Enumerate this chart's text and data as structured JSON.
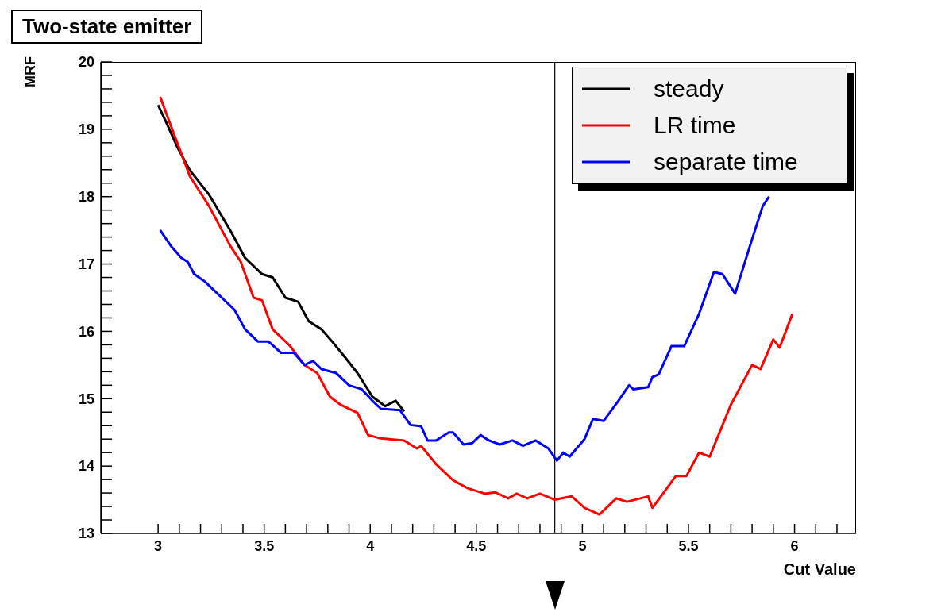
{
  "chart_data": {
    "type": "line",
    "title": "Two-state emitter",
    "xlabel": "Cut Value",
    "ylabel": "MRF",
    "xlim": [
      2.73,
      6.29
    ],
    "ylim": [
      13,
      20
    ],
    "xticks": [
      3,
      {
        "value": 3.1,
        "label": null
      },
      {
        "value": 3.2,
        "label": null
      },
      {
        "value": 3.3,
        "label": null
      },
      {
        "value": 3.4,
        "label": null
      },
      3.5,
      {
        "value": 3.6,
        "label": null
      },
      {
        "value": 3.7,
        "label": null
      },
      {
        "value": 3.8,
        "label": null
      },
      {
        "value": 3.9,
        "label": null
      },
      4,
      {
        "value": 4.1,
        "label": null
      },
      {
        "value": 4.2,
        "label": null
      },
      {
        "value": 4.3,
        "label": null
      },
      {
        "value": 4.4,
        "label": null
      },
      4.5,
      {
        "value": 4.6,
        "label": null
      },
      {
        "value": 4.7,
        "label": null
      },
      {
        "value": 4.8,
        "label": null
      },
      {
        "value": 4.9,
        "label": null
      },
      5,
      {
        "value": 5.1,
        "label": null
      },
      {
        "value": 5.2,
        "label": null
      },
      {
        "value": 5.3,
        "label": null
      },
      {
        "value": 5.4,
        "label": null
      },
      5.5,
      {
        "value": 5.6,
        "label": null
      },
      {
        "value": 5.7,
        "label": null
      },
      {
        "value": 5.8,
        "label": null
      },
      {
        "value": 5.9,
        "label": null
      },
      6,
      {
        "value": 6.1,
        "label": null
      },
      {
        "value": 6.2,
        "label": null
      }
    ],
    "yticks": [
      13,
      {
        "value": 13.2,
        "label": null
      },
      {
        "value": 13.4,
        "label": null
      },
      {
        "value": 13.6,
        "label": null
      },
      {
        "value": 13.8,
        "label": null
      },
      14,
      {
        "value": 14.2,
        "label": null
      },
      {
        "value": 14.4,
        "label": null
      },
      {
        "value": 14.6,
        "label": null
      },
      {
        "value": 14.8,
        "label": null
      },
      15,
      {
        "value": 15.2,
        "label": null
      },
      {
        "value": 15.4,
        "label": null
      },
      {
        "value": 15.6,
        "label": null
      },
      {
        "value": 15.8,
        "label": null
      },
      16,
      {
        "value": 16.2,
        "label": null
      },
      {
        "value": 16.4,
        "label": null
      },
      {
        "value": 16.6,
        "label": null
      },
      {
        "value": 16.8,
        "label": null
      },
      17,
      {
        "value": 17.2,
        "label": null
      },
      {
        "value": 17.4,
        "label": null
      },
      {
        "value": 17.6,
        "label": null
      },
      {
        "value": 17.8,
        "label": null
      },
      18,
      {
        "value": 18.2,
        "label": null
      },
      {
        "value": 18.4,
        "label": null
      },
      {
        "value": 18.6,
        "label": null
      },
      {
        "value": 18.8,
        "label": null
      },
      19,
      {
        "value": 19.2,
        "label": null
      },
      {
        "value": 19.4,
        "label": null
      },
      {
        "value": 19.6,
        "label": null
      },
      {
        "value": 19.8,
        "label": null
      },
      20
    ],
    "grid": false,
    "legend": "top right",
    "marker": "none",
    "line_style": "solid",
    "ref_lines": [
      {
        "axis": "x",
        "value": 4.87,
        "color": "#000000"
      }
    ],
    "series": [
      {
        "name": "steady",
        "color": "#000000",
        "x": [
          3,
          3.04,
          3.09,
          3.15,
          3.24,
          3.34,
          3.41,
          3.49,
          3.54,
          3.6,
          3.66,
          3.71,
          3.77,
          3.82,
          3.88,
          3.94,
          4.01,
          4.07,
          4.12,
          4.16
        ],
        "values": [
          19.36,
          19.09,
          18.74,
          18.39,
          18.03,
          17.5,
          17.09,
          16.85,
          16.8,
          16.5,
          16.44,
          16.15,
          16.03,
          15.85,
          15.62,
          15.38,
          15.03,
          14.89,
          14.97,
          14.81
        ]
      },
      {
        "name": "LR time",
        "color": "#ff0000",
        "x": [
          3.01,
          3.07,
          3.15,
          3.24,
          3.34,
          3.39,
          3.45,
          3.49,
          3.54,
          3.62,
          3.69,
          3.75,
          3.81,
          3.86,
          3.94,
          3.99,
          4.05,
          4.16,
          4.22,
          4.24,
          4.31,
          4.39,
          4.46,
          4.54,
          4.59,
          4.65,
          4.69,
          4.74,
          4.8,
          4.87,
          4.95,
          5.01,
          5.08,
          5.16,
          5.21,
          5.31,
          5.33,
          5.38,
          5.44,
          5.49,
          5.55,
          5.6,
          5.7,
          5.8,
          5.84,
          5.9,
          5.93,
          5.99
        ],
        "values": [
          19.48,
          18.97,
          18.3,
          17.86,
          17.27,
          17.03,
          16.5,
          16.46,
          16.03,
          15.79,
          15.5,
          15.38,
          15.03,
          14.91,
          14.79,
          14.46,
          14.41,
          14.38,
          14.26,
          14.3,
          14.03,
          13.79,
          13.67,
          13.59,
          13.61,
          13.52,
          13.59,
          13.52,
          13.59,
          13.5,
          13.55,
          13.38,
          13.28,
          13.52,
          13.47,
          13.55,
          13.38,
          13.59,
          13.85,
          13.85,
          14.2,
          14.14,
          14.91,
          15.5,
          15.44,
          15.88,
          15.76,
          16.26
        ]
      },
      {
        "name": "separate time",
        "color": "#0000ff",
        "x": [
          3.01,
          3.06,
          3.11,
          3.14,
          3.17,
          3.22,
          3.28,
          3.36,
          3.41,
          3.47,
          3.52,
          3.58,
          3.64,
          3.69,
          3.73,
          3.77,
          3.84,
          3.9,
          3.96,
          4.01,
          4.05,
          4.14,
          4.19,
          4.24,
          4.27,
          4.31,
          4.37,
          4.39,
          4.44,
          4.48,
          4.52,
          4.56,
          4.61,
          4.67,
          4.72,
          4.78,
          4.84,
          4.88,
          4.91,
          4.94,
          5.01,
          5.05,
          5.1,
          5.17,
          5.22,
          5.24,
          5.31,
          5.33,
          5.36,
          5.42,
          5.48,
          5.55,
          5.62,
          5.66,
          5.72,
          5.79,
          5.85,
          5.88
        ],
        "values": [
          17.5,
          17.27,
          17.09,
          17.03,
          16.85,
          16.74,
          16.56,
          16.32,
          16.03,
          15.85,
          15.85,
          15.68,
          15.68,
          15.5,
          15.56,
          15.44,
          15.38,
          15.2,
          15.14,
          14.97,
          14.85,
          14.83,
          14.61,
          14.59,
          14.38,
          14.38,
          14.5,
          14.5,
          14.32,
          14.34,
          14.46,
          14.38,
          14.32,
          14.38,
          14.3,
          14.38,
          14.26,
          14.08,
          14.2,
          14.14,
          14.4,
          14.7,
          14.67,
          14.97,
          15.2,
          15.14,
          15.17,
          15.32,
          15.36,
          15.78,
          15.78,
          16.26,
          16.88,
          16.85,
          16.56,
          17.27,
          17.86,
          18.0
        ]
      }
    ]
  }
}
